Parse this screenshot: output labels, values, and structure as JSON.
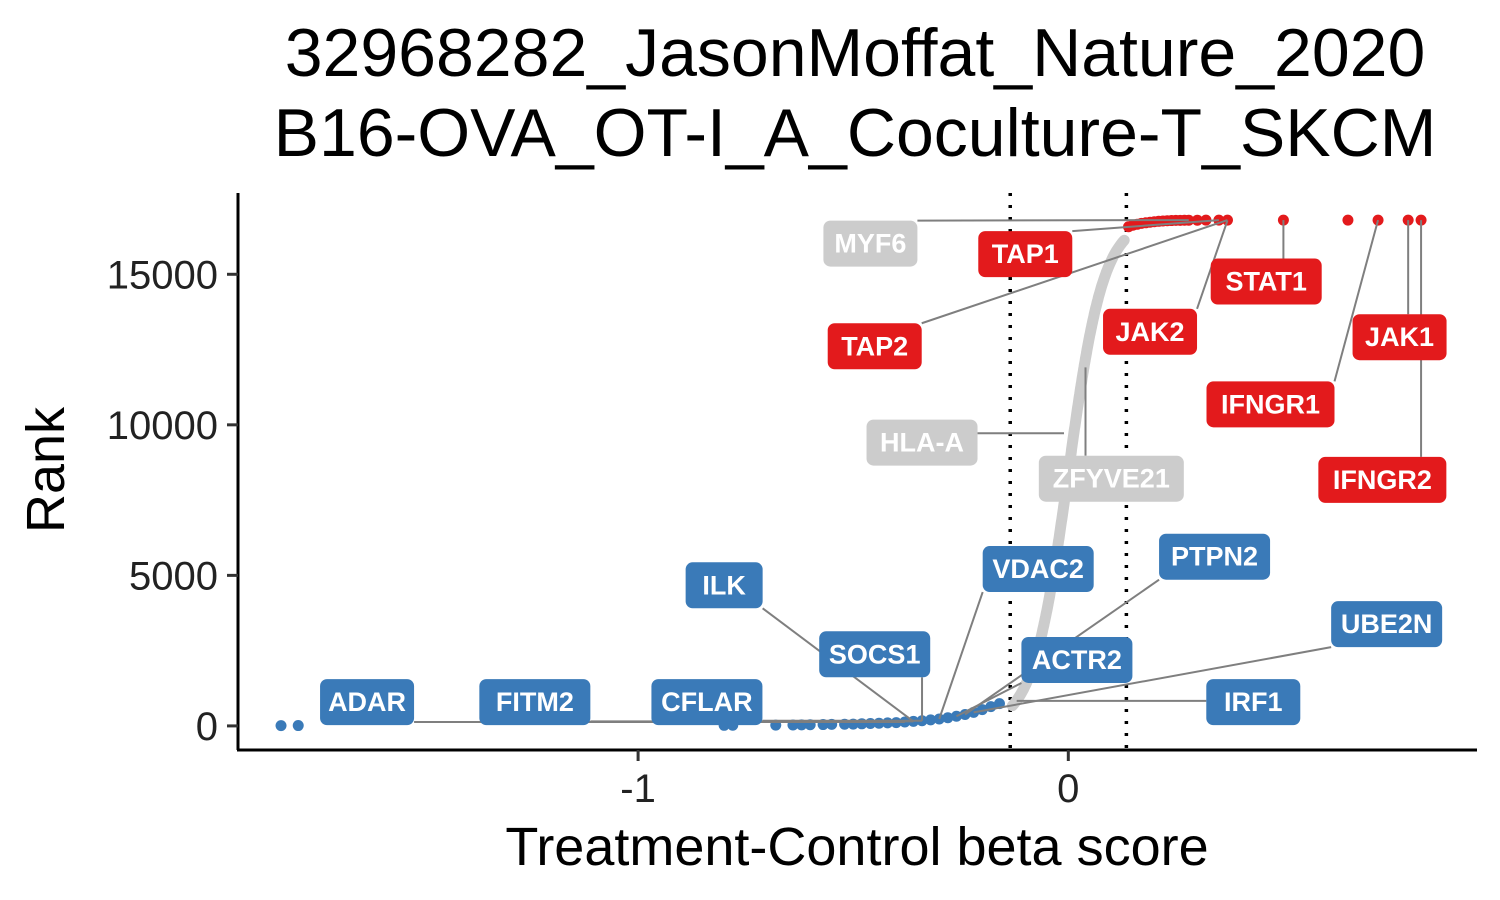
{
  "chart_data": {
    "type": "scatter",
    "title_lines": [
      "32968282_JasonMoffat_Nature_2020",
      "B16-OVA_OT-I_A_Coculture-T_SKCM"
    ],
    "xlabel": "Treatment-Control beta score",
    "ylabel": "Rank",
    "xlim": [
      -1.93,
      0.95
    ],
    "ylim": [
      -800,
      17700
    ],
    "x_ticks": [
      {
        "value": -1,
        "label": "-1"
      },
      {
        "value": 0,
        "label": "0"
      }
    ],
    "y_ticks": [
      {
        "value": 0,
        "label": "0"
      },
      {
        "value": 5000,
        "label": "5000"
      },
      {
        "value": 10000,
        "label": "10000"
      },
      {
        "value": 15000,
        "label": "15000"
      }
    ],
    "thresholds_x": [
      -0.135,
      0.135
    ],
    "grid": false,
    "colors": {
      "negative": "#3a7ab8",
      "neutral": "#cccccc",
      "positive": "#e31a1c"
    },
    "n_genes": 16800,
    "curve": {
      "x_low": -0.13,
      "x_high": 0.13
    },
    "low_tail_points": [
      {
        "x": -1.83,
        "y": 10
      },
      {
        "x": -1.79,
        "y": 12
      },
      {
        "x": -0.8,
        "y": 20
      },
      {
        "x": -0.78,
        "y": 22
      },
      {
        "x": -0.68,
        "y": 25
      },
      {
        "x": -0.64,
        "y": 30
      },
      {
        "x": -0.62,
        "y": 35
      },
      {
        "x": -0.6,
        "y": 40
      },
      {
        "x": -0.57,
        "y": 45
      },
      {
        "x": -0.55,
        "y": 50
      },
      {
        "x": -0.52,
        "y": 55
      },
      {
        "x": -0.5,
        "y": 60
      },
      {
        "x": -0.48,
        "y": 70
      },
      {
        "x": -0.46,
        "y": 80
      },
      {
        "x": -0.44,
        "y": 90
      },
      {
        "x": -0.42,
        "y": 100
      },
      {
        "x": -0.4,
        "y": 110
      },
      {
        "x": -0.38,
        "y": 130
      },
      {
        "x": -0.36,
        "y": 150
      },
      {
        "x": -0.34,
        "y": 170
      },
      {
        "x": -0.32,
        "y": 200
      },
      {
        "x": -0.3,
        "y": 230
      },
      {
        "x": -0.28,
        "y": 270
      },
      {
        "x": -0.26,
        "y": 320
      },
      {
        "x": -0.24,
        "y": 380
      },
      {
        "x": -0.22,
        "y": 450
      },
      {
        "x": -0.2,
        "y": 540
      },
      {
        "x": -0.18,
        "y": 640
      },
      {
        "x": -0.16,
        "y": 740
      }
    ],
    "high_tail_points": [
      {
        "x": 0.14,
        "y": 16580
      },
      {
        "x": 0.15,
        "y": 16630
      },
      {
        "x": 0.16,
        "y": 16660
      },
      {
        "x": 0.17,
        "y": 16690
      },
      {
        "x": 0.18,
        "y": 16710
      },
      {
        "x": 0.19,
        "y": 16730
      },
      {
        "x": 0.2,
        "y": 16745
      },
      {
        "x": 0.21,
        "y": 16760
      },
      {
        "x": 0.22,
        "y": 16770
      },
      {
        "x": 0.23,
        "y": 16780
      },
      {
        "x": 0.24,
        "y": 16785
      },
      {
        "x": 0.25,
        "y": 16790
      },
      {
        "x": 0.26,
        "y": 16792
      },
      {
        "x": 0.27,
        "y": 16794
      },
      {
        "x": 0.28,
        "y": 16796
      },
      {
        "x": 0.3,
        "y": 16797
      },
      {
        "x": 0.32,
        "y": 16798
      },
      {
        "x": 0.35,
        "y": 16799
      },
      {
        "x": 0.37,
        "y": 16799
      },
      {
        "x": 0.5,
        "y": 16800
      },
      {
        "x": 0.65,
        "y": 16800
      },
      {
        "x": 0.72,
        "y": 16800
      },
      {
        "x": 0.79,
        "y": 16800
      },
      {
        "x": 0.82,
        "y": 16800
      }
    ],
    "labeled_genes": [
      {
        "name": "MYF6",
        "group": "neutral",
        "x": 0.28,
        "y": 16800,
        "label_x": -0.46,
        "label_y": 16020
      },
      {
        "name": "TAP1",
        "group": "positive",
        "x": 0.35,
        "y": 16800,
        "label_x": -0.1,
        "label_y": 15670
      },
      {
        "name": "TAP2",
        "group": "positive",
        "x": 0.37,
        "y": 16800,
        "label_x": -0.45,
        "label_y": 12610
      },
      {
        "name": "STAT1",
        "group": "positive",
        "x": 0.5,
        "y": 16800,
        "label_x": 0.46,
        "label_y": 14760
      },
      {
        "name": "JAK2",
        "group": "positive",
        "x": 0.37,
        "y": 16790,
        "label_x": 0.19,
        "label_y": 13090
      },
      {
        "name": "JAK1",
        "group": "positive",
        "x": 0.79,
        "y": 16800,
        "label_x": 0.77,
        "label_y": 12910
      },
      {
        "name": "IFNGR1",
        "group": "positive",
        "x": 0.72,
        "y": 16800,
        "label_x": 0.47,
        "label_y": 10680
      },
      {
        "name": "IFNGR2",
        "group": "positive",
        "x": 0.82,
        "y": 16800,
        "label_x": 0.73,
        "label_y": 8170
      },
      {
        "name": "HLA-A",
        "group": "neutral",
        "x": -0.01,
        "y": 9720,
        "label_x": -0.34,
        "label_y": 9410
      },
      {
        "name": "ZFYVE21",
        "group": "neutral",
        "x": 0.04,
        "y": 11910,
        "label_x": 0.1,
        "label_y": 8210
      },
      {
        "name": "VDAC2",
        "group": "negative",
        "x": -0.3,
        "y": 230,
        "label_x": -0.07,
        "label_y": 5210
      },
      {
        "name": "PTPN2",
        "group": "negative",
        "x": -0.24,
        "y": 380,
        "label_x": 0.34,
        "label_y": 5620
      },
      {
        "name": "ILK",
        "group": "negative",
        "x": -0.36,
        "y": 150,
        "label_x": -0.8,
        "label_y": 4670
      },
      {
        "name": "UBE2N",
        "group": "negative",
        "x": -0.22,
        "y": 450,
        "label_x": 0.74,
        "label_y": 3380
      },
      {
        "name": "SOCS1",
        "group": "negative",
        "x": -0.34,
        "y": 170,
        "label_x": -0.45,
        "label_y": 2380
      },
      {
        "name": "ACTR2",
        "group": "negative",
        "x": -0.26,
        "y": 320,
        "label_x": 0.02,
        "label_y": 2190
      },
      {
        "name": "ADAR",
        "group": "negative",
        "x": -0.38,
        "y": 130,
        "label_x": -1.63,
        "label_y": 790
      },
      {
        "name": "FITM2",
        "group": "negative",
        "x": -0.36,
        "y": 150,
        "label_x": -1.24,
        "label_y": 790
      },
      {
        "name": "CFLAR",
        "group": "negative",
        "x": -0.34,
        "y": 170,
        "label_x": -0.84,
        "label_y": 790
      },
      {
        "name": "IRF1",
        "group": "negative",
        "x": -0.12,
        "y": 830,
        "label_x": 0.43,
        "label_y": 790
      }
    ]
  }
}
